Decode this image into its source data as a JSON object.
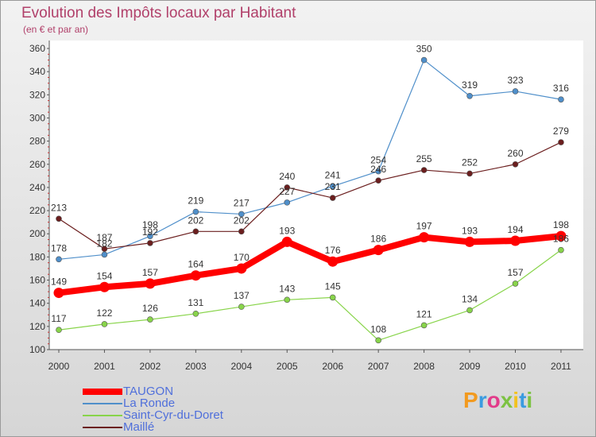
{
  "title": "Evolution des Impôts locaux par Habitant",
  "subtitle": "(en € et par an)",
  "logo_text": "Proxiti",
  "chart_data": {
    "type": "line",
    "x": [
      "2000",
      "2001",
      "2002",
      "2003",
      "2004",
      "2005",
      "2006",
      "2007",
      "2008",
      "2009",
      "2010",
      "2011"
    ],
    "ylim": [
      100,
      360
    ],
    "yticks": [
      100,
      120,
      140,
      160,
      180,
      200,
      220,
      240,
      260,
      280,
      300,
      320,
      340,
      360
    ],
    "grid": false,
    "legend_position": "bottom-left",
    "series": [
      {
        "name": "TAUGON",
        "color": "#ff0000",
        "values": [
          149,
          154,
          157,
          164,
          170,
          193,
          176,
          186,
          197,
          193,
          194,
          198
        ]
      },
      {
        "name": "La Ronde",
        "color": "#4f8fca",
        "values": [
          178,
          182,
          198,
          219,
          217,
          227,
          241,
          254,
          350,
          319,
          323,
          316
        ]
      },
      {
        "name": "Saint-Cyr-du-Doret",
        "color": "#88d44a",
        "values": [
          117,
          122,
          126,
          131,
          137,
          143,
          145,
          108,
          121,
          134,
          157,
          186
        ]
      },
      {
        "name": "Maillé",
        "color": "#6b1e1e",
        "values": [
          213,
          187,
          192,
          202,
          202,
          240,
          231,
          246,
          255,
          252,
          260,
          279
        ]
      }
    ]
  }
}
